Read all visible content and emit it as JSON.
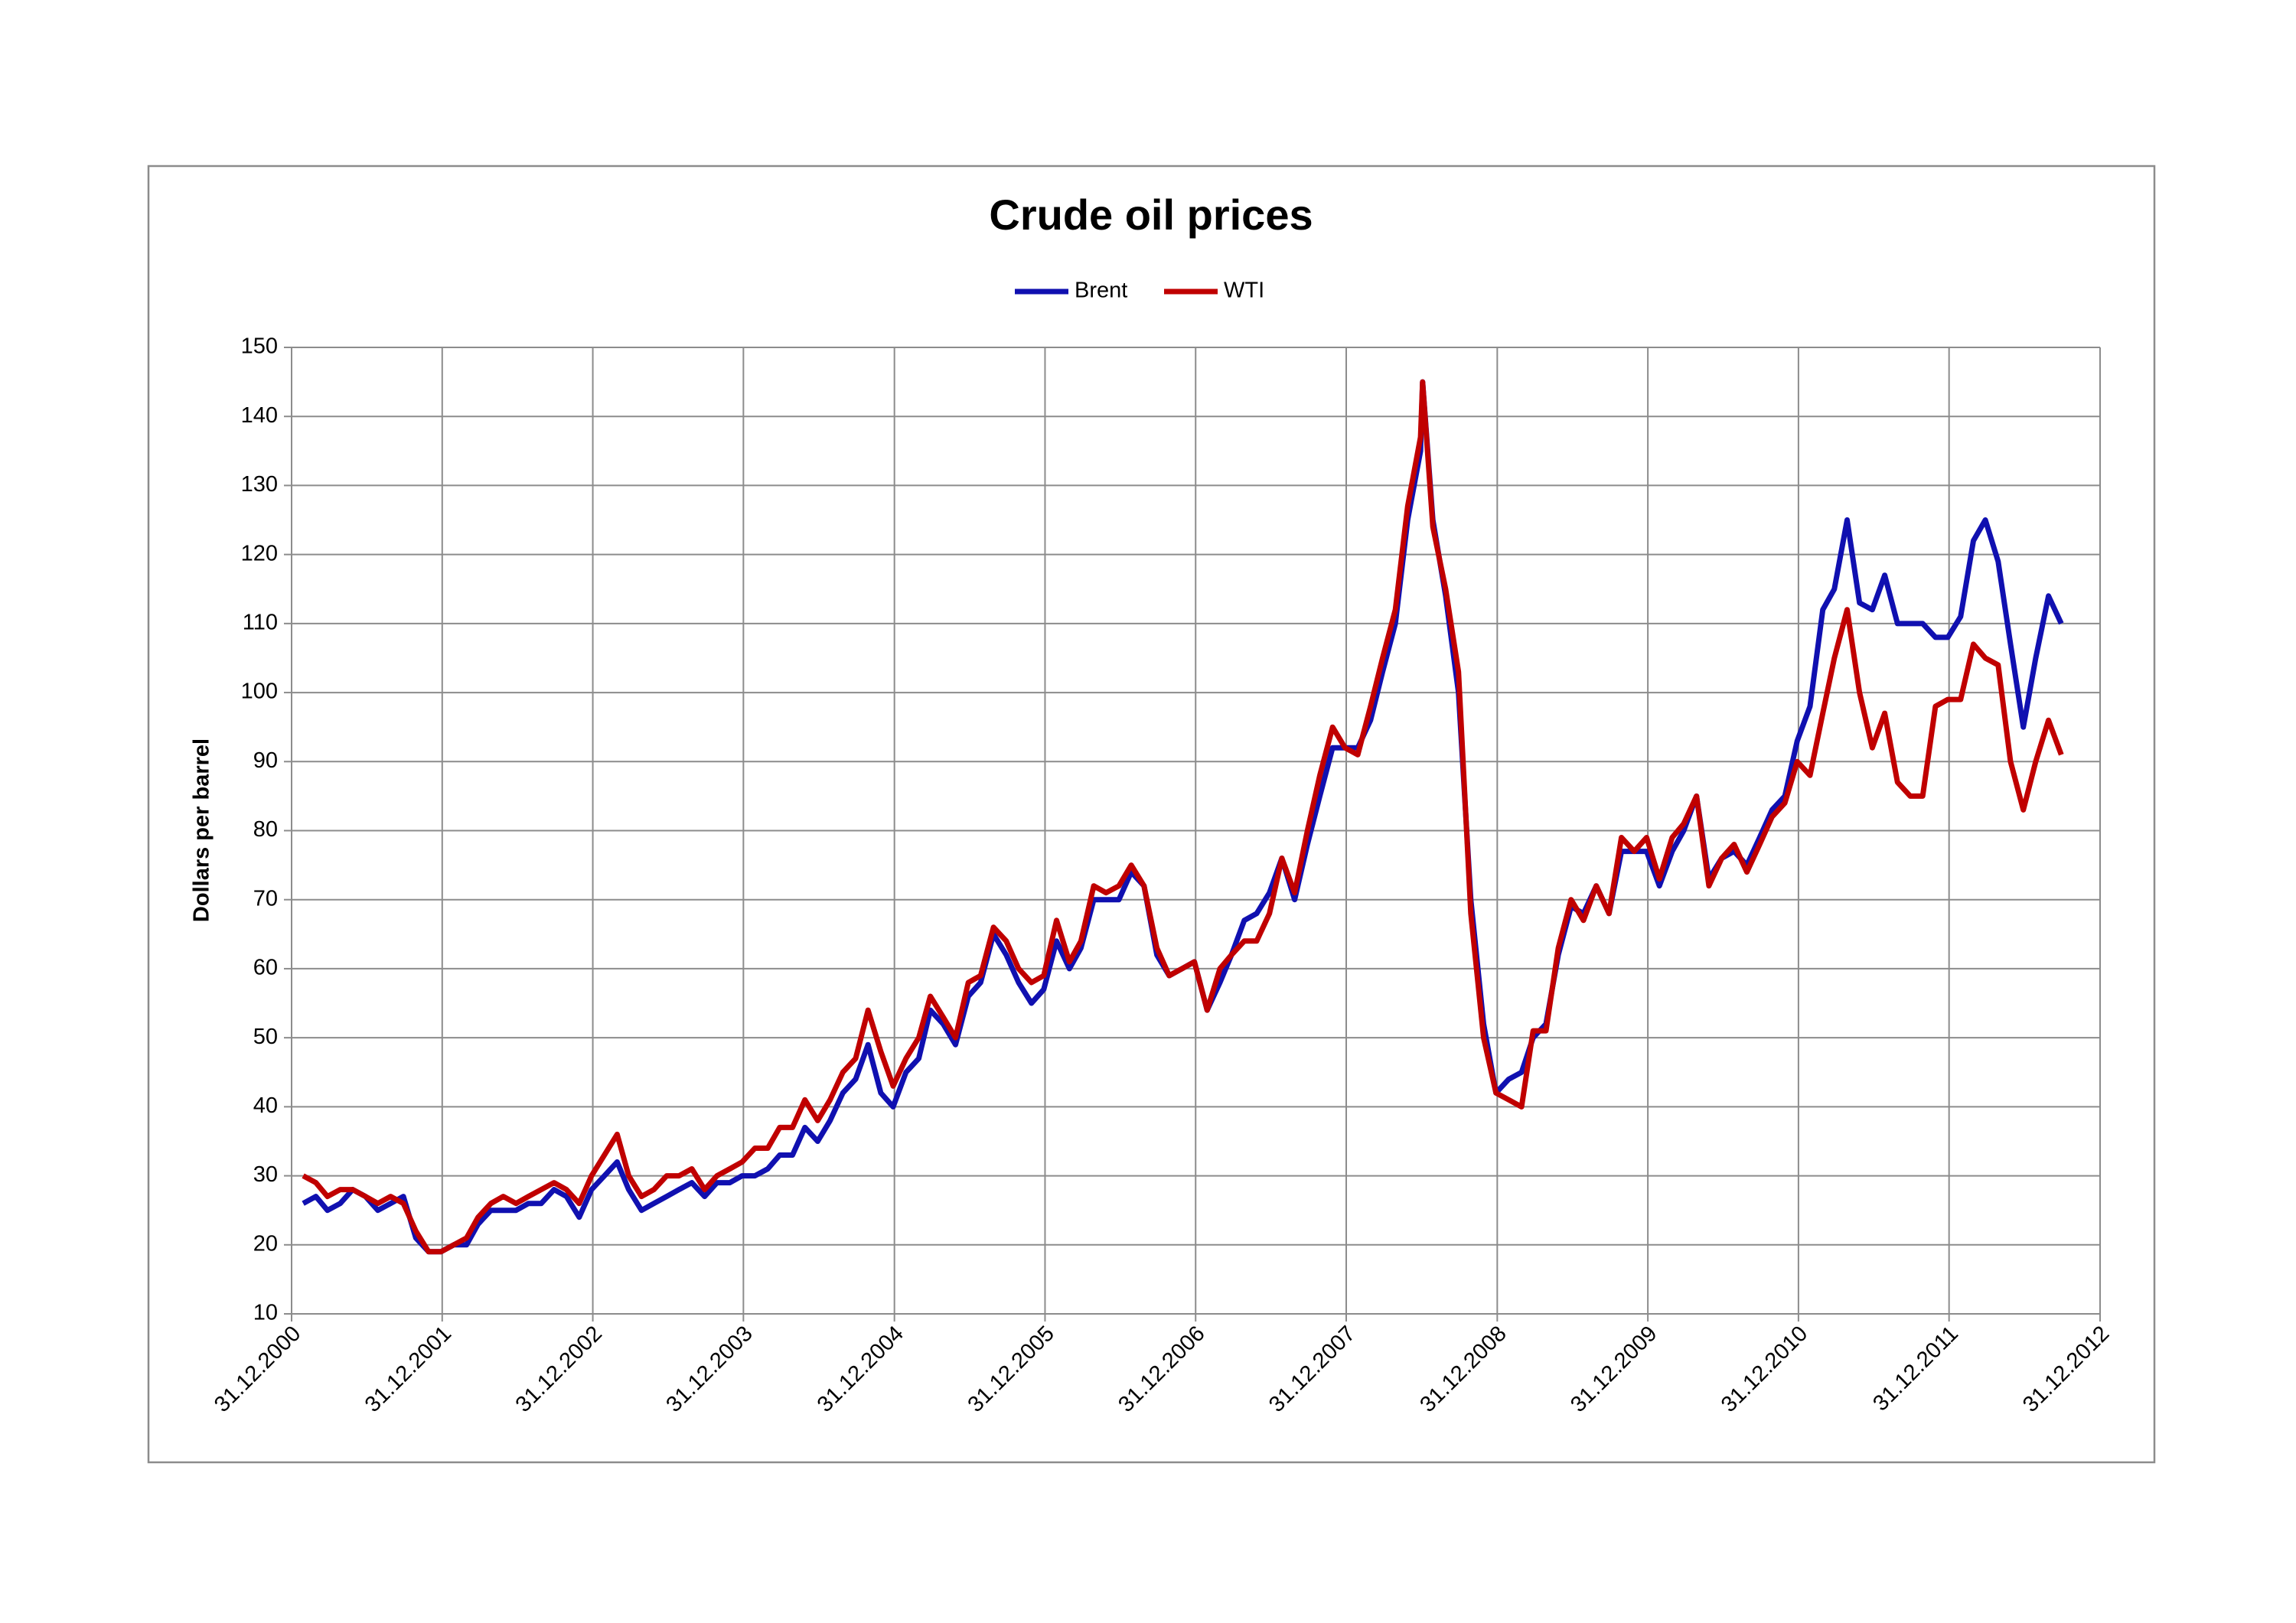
{
  "chart_data": {
    "type": "line",
    "title": "Crude oil prices",
    "y_label": "Dollars per barrel",
    "x": [
      "28.01.2001",
      "28.02.2001",
      "28.03.2001",
      "28.04.2001",
      "28.05.2001",
      "28.06.2001",
      "28.07.2001",
      "28.08.2001",
      "28.09.2001",
      "28.10.2001",
      "28.11.2001",
      "28.12.2001",
      "28.01.2002",
      "28.02.2002",
      "28.03.2002",
      "28.04.2002",
      "28.05.2002",
      "28.06.2002",
      "28.07.2002",
      "28.08.2002",
      "28.09.2002",
      "28.10.2002",
      "28.11.2002",
      "28.12.2002",
      "28.01.2003",
      "28.02.2003",
      "28.03.2003",
      "28.04.2003",
      "28.05.2003",
      "28.06.2003",
      "28.07.2003",
      "28.08.2003",
      "28.09.2003",
      "28.10.2003",
      "28.11.2003",
      "28.12.2003",
      "28.01.2004",
      "28.02.2004",
      "28.03.2004",
      "28.04.2004",
      "28.05.2004",
      "28.06.2004",
      "28.07.2004",
      "28.08.2004",
      "28.09.2004",
      "28.10.2004",
      "28.11.2004",
      "28.12.2004",
      "28.01.2005",
      "28.02.2005",
      "28.03.2005",
      "28.04.2005",
      "28.05.2005",
      "28.06.2005",
      "28.07.2005",
      "28.08.2005",
      "28.09.2005",
      "28.10.2005",
      "28.11.2005",
      "28.12.2005",
      "28.01.2006",
      "28.02.2006",
      "28.03.2006",
      "28.04.2006",
      "28.05.2006",
      "28.06.2006",
      "28.07.2006",
      "28.08.2006",
      "28.09.2006",
      "28.10.2006",
      "28.11.2006",
      "28.12.2006",
      "28.01.2007",
      "28.02.2007",
      "28.03.2007",
      "28.04.2007",
      "28.05.2007",
      "28.06.2007",
      "28.07.2007",
      "28.08.2007",
      "28.09.2007",
      "28.10.2007",
      "28.11.2007",
      "28.12.2007",
      "28.01.2008",
      "28.02.2008",
      "28.03.2008",
      "28.04.2008",
      "28.05.2008",
      "28.06.2008",
      "03.07.2008",
      "28.07.2008",
      "28.08.2008",
      "28.09.2008",
      "28.10.2008",
      "28.11.2008",
      "28.12.2008",
      "28.01.2009",
      "28.02.2009",
      "28.03.2009",
      "28.04.2009",
      "28.05.2009",
      "28.06.2009",
      "28.07.2009",
      "28.08.2009",
      "28.09.2009",
      "28.10.2009",
      "28.11.2009",
      "28.12.2009",
      "28.01.2010",
      "28.02.2010",
      "28.03.2010",
      "28.04.2010",
      "28.05.2010",
      "28.06.2010",
      "28.07.2010",
      "28.08.2010",
      "28.09.2010",
      "28.10.2010",
      "28.11.2010",
      "28.12.2010",
      "28.01.2011",
      "28.02.2011",
      "28.03.2011",
      "28.04.2011",
      "28.05.2011",
      "28.06.2011",
      "28.07.2011",
      "28.08.2011",
      "28.09.2011",
      "28.10.2011",
      "28.11.2011",
      "28.12.2011",
      "28.01.2012",
      "28.02.2012",
      "28.03.2012",
      "28.04.2012",
      "28.05.2012",
      "28.06.2012",
      "28.07.2012",
      "28.08.2012",
      "28.09.2012"
    ],
    "series": [
      {
        "name": "Brent",
        "color": "#1010b0",
        "values": [
          26,
          27,
          25,
          26,
          28,
          27,
          25,
          26,
          27,
          21,
          19,
          19,
          20,
          20,
          23,
          25,
          25,
          25,
          26,
          26,
          28,
          27,
          24,
          28,
          30,
          32,
          28,
          25,
          26,
          27,
          28,
          29,
          27,
          29,
          29,
          30,
          30,
          31,
          33,
          33,
          37,
          35,
          38,
          42,
          44,
          49,
          42,
          40,
          45,
          47,
          54,
          52,
          49,
          56,
          58,
          65,
          62,
          58,
          55,
          57,
          64,
          60,
          63,
          70,
          70,
          70,
          74,
          72,
          62,
          59,
          60,
          61,
          54,
          58,
          62,
          67,
          68,
          71,
          76,
          70,
          78,
          85,
          92,
          92,
          92,
          96,
          103,
          110,
          125,
          135,
          145,
          125,
          114,
          100,
          70,
          52,
          42,
          44,
          45,
          50,
          52,
          62,
          69,
          68,
          72,
          68,
          77,
          77,
          77,
          72,
          77,
          80,
          85,
          73,
          76,
          77,
          75,
          79,
          83,
          85,
          93,
          98,
          112,
          115,
          125,
          113,
          112,
          117,
          110,
          110,
          110,
          108,
          108,
          111,
          122,
          125,
          119,
          107,
          95,
          105,
          114,
          110
        ]
      },
      {
        "name": "WTI",
        "color": "#c00000",
        "values": [
          30,
          29,
          27,
          28,
          28,
          27,
          26,
          27,
          26,
          22,
          19,
          19,
          20,
          21,
          24,
          26,
          27,
          26,
          27,
          28,
          29,
          28,
          26,
          30,
          33,
          36,
          30,
          27,
          28,
          30,
          30,
          31,
          28,
          30,
          31,
          32,
          34,
          34,
          37,
          37,
          41,
          38,
          41,
          45,
          47,
          54,
          48,
          43,
          47,
          50,
          56,
          53,
          50,
          58,
          59,
          66,
          64,
          60,
          58,
          59,
          67,
          61,
          64,
          72,
          71,
          72,
          75,
          72,
          63,
          59,
          60,
          61,
          54,
          60,
          62,
          64,
          64,
          68,
          76,
          71,
          80,
          88,
          95,
          92,
          91,
          98,
          105,
          112,
          127,
          137,
          145,
          124,
          115,
          103,
          68,
          50,
          42,
          41,
          40,
          51,
          51,
          63,
          70,
          67,
          72,
          68,
          79,
          77,
          79,
          73,
          79,
          81,
          85,
          72,
          76,
          78,
          74,
          78,
          82,
          84,
          90,
          88,
          97,
          105,
          112,
          100,
          92,
          97,
          87,
          85,
          85,
          98,
          99,
          99,
          107,
          105,
          104,
          90,
          83,
          90,
          96,
          91
        ]
      }
    ],
    "xlim": [
      "31.12.2000",
      "31.12.2012"
    ],
    "xticks": [
      "31.12.2000",
      "31.12.2001",
      "31.12.2002",
      "31.12.2003",
      "31.12.2004",
      "31.12.2005",
      "31.12.2006",
      "31.12.2007",
      "31.12.2008",
      "31.12.2009",
      "31.12.2010",
      "31.12.2011",
      "31.12.2012"
    ],
    "ylim": [
      10,
      150
    ],
    "yticks": [
      10,
      20,
      30,
      40,
      50,
      60,
      70,
      80,
      90,
      100,
      110,
      120,
      130,
      140,
      150
    ],
    "grid": true,
    "legend": "top"
  }
}
